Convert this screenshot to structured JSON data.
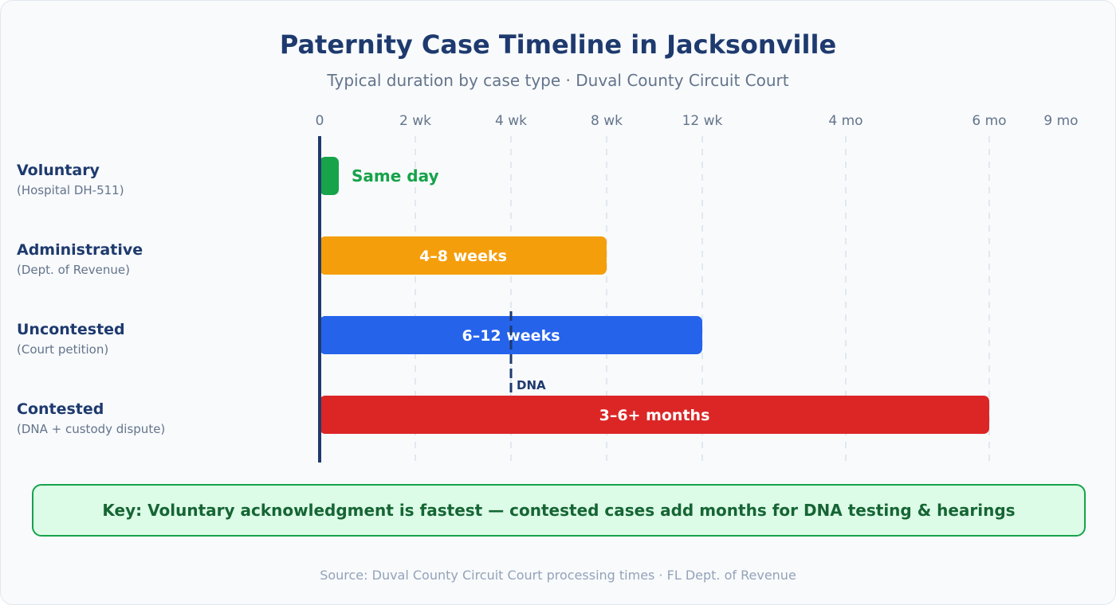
{
  "chart_data": {
    "type": "bar",
    "orientation": "horizontal",
    "title": "Paternity Case Timeline in Jacksonville",
    "subtitle": "Typical duration by case type · Duval County Circuit Court",
    "x_unit": "weeks",
    "x_ticks": [
      {
        "label": "0",
        "weeks": 0
      },
      {
        "label": "2 wk",
        "weeks": 2
      },
      {
        "label": "4 wk",
        "weeks": 4
      },
      {
        "label": "8 wk",
        "weeks": 8
      },
      {
        "label": "12 wk",
        "weeks": 12
      },
      {
        "label": "4 mo",
        "weeks": 17.4
      },
      {
        "label": "6 mo",
        "weeks": 26
      },
      {
        "label": "9 mo",
        "weeks": 39
      }
    ],
    "grid": true,
    "series": [
      {
        "category": "Voluntary",
        "sub": "(Hospital DH-511)",
        "start": 0,
        "end": 0,
        "label": "Same day",
        "color": "#16a34a",
        "label_outside": true
      },
      {
        "category": "Administrative",
        "sub": "(Dept. of Revenue)",
        "start": 0,
        "end": 8,
        "label": "4–8 weeks",
        "color": "#f59e0b"
      },
      {
        "category": "Uncontested",
        "sub": "(Court petition)",
        "start": 0,
        "end": 12,
        "label": "6–12 weeks",
        "color": "#2563eb"
      },
      {
        "category": "Contested",
        "sub": "(DNA + custody dispute)",
        "start": 0,
        "end": 26,
        "label": "3–6+ months",
        "color": "#dc2626"
      }
    ],
    "annotations": [
      {
        "label": "DNA",
        "weeks": 4
      }
    ]
  },
  "key_note": "Key: Voluntary acknowledgment is fastest — contested cases add months for DNA testing & hearings",
  "source": "Source: Duval County Circuit Court processing times · FL Dept. of Revenue",
  "colors": {
    "axis": "#1e3a6e",
    "grid": "#e2e8f0",
    "key_bg": "#dcfce7",
    "key_border": "#16a34a"
  }
}
